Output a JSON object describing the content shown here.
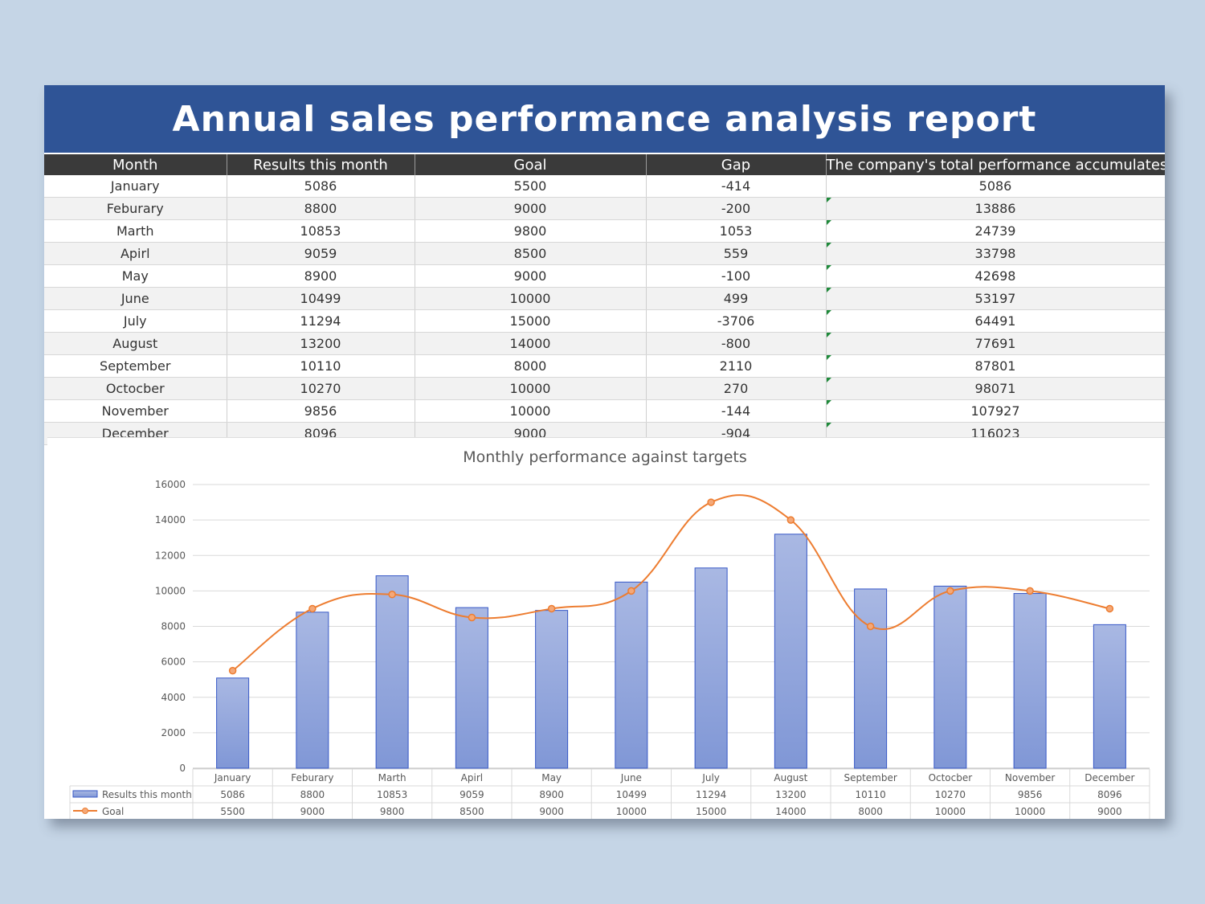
{
  "report": {
    "title": "Annual sales performance analysis report"
  },
  "table": {
    "headers": [
      "Month",
      "Results this month",
      "Goal",
      "Gap",
      "The company's total performance accumulates"
    ],
    "rows": [
      [
        "January",
        "5086",
        "5500",
        "-414",
        "5086"
      ],
      [
        "Feburary",
        "8800",
        "9000",
        "-200",
        "13886"
      ],
      [
        "Marth",
        "10853",
        "9800",
        "1053",
        "24739"
      ],
      [
        "Apirl",
        "9059",
        "8500",
        "559",
        "33798"
      ],
      [
        "May",
        "8900",
        "9000",
        "-100",
        "42698"
      ],
      [
        "June",
        "10499",
        "10000",
        "499",
        "53197"
      ],
      [
        "July",
        "11294",
        "15000",
        "-3706",
        "64491"
      ],
      [
        "August",
        "13200",
        "14000",
        "-800",
        "77691"
      ],
      [
        "September",
        "10110",
        "8000",
        "2110",
        "87801"
      ],
      [
        "Octocber",
        "10270",
        "10000",
        "270",
        "98071"
      ],
      [
        "November",
        "9856",
        "10000",
        "-144",
        "107927"
      ],
      [
        "December",
        "8096",
        "9000",
        "-904",
        "116023"
      ]
    ]
  },
  "colors": {
    "title_bg": "#2f5496",
    "header_bg": "#3a3a3a",
    "bar_fill_top": "#a9b8e3",
    "bar_fill_bottom": "#8097d6",
    "bar_stroke": "#3657c6",
    "line": "#ed7d31",
    "page_bg": "#c5d5e6"
  },
  "chart_data": {
    "type": "bar",
    "title": "Monthly performance against  targets",
    "categories": [
      "January",
      "Feburary",
      "Marth",
      "Apirl",
      "May",
      "June",
      "July",
      "August",
      "September",
      "Octocber",
      "November",
      "December"
    ],
    "series": [
      {
        "name": "Results this month",
        "type": "bar",
        "values": [
          5086,
          8800,
          10853,
          9059,
          8900,
          10499,
          11294,
          13200,
          10110,
          10270,
          9856,
          8096
        ]
      },
      {
        "name": "Goal",
        "type": "line",
        "smooth": true,
        "values": [
          5500,
          9000,
          9800,
          8500,
          9000,
          10000,
          15000,
          14000,
          8000,
          10000,
          10000,
          9000
        ]
      }
    ],
    "ylim": [
      0,
      16000
    ],
    "yticks": [
      0,
      2000,
      4000,
      6000,
      8000,
      10000,
      12000,
      14000,
      16000
    ],
    "grid": true,
    "data_table": true
  }
}
